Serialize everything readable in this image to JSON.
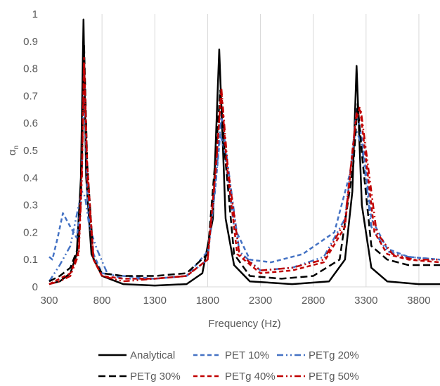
{
  "chart_data": {
    "type": "line",
    "title": "",
    "xlabel": "Frequency (Hz)",
    "ylabel": "α",
    "ylabel_sub": "n",
    "xlim": [
      300,
      4000
    ],
    "ylim": [
      0,
      1
    ],
    "xticks": [
      300,
      800,
      1300,
      1800,
      2300,
      2800,
      3300,
      3800
    ],
    "yticks": [
      0,
      0.1,
      0.2,
      0.3,
      0.4,
      0.5,
      0.6,
      0.7,
      0.8,
      0.9,
      1
    ],
    "ytick_labels": [
      "0",
      "0.1",
      "0.2",
      "0.3",
      "0.4",
      "0.5",
      "0.6",
      "0.7",
      "0.8",
      "0.9",
      "1"
    ],
    "grid": "vertical",
    "legend_position": "bottom",
    "series": [
      {
        "name": "Analytical",
        "color": "#000000",
        "dash": "solid",
        "points": [
          [
            300,
            0.01
          ],
          [
            400,
            0.02
          ],
          [
            500,
            0.05
          ],
          [
            560,
            0.12
          ],
          [
            600,
            0.4
          ],
          [
            625,
            0.98
          ],
          [
            650,
            0.4
          ],
          [
            700,
            0.12
          ],
          [
            800,
            0.04
          ],
          [
            1000,
            0.01
          ],
          [
            1300,
            0.005
          ],
          [
            1600,
            0.01
          ],
          [
            1750,
            0.05
          ],
          [
            1850,
            0.25
          ],
          [
            1910,
            0.87
          ],
          [
            1970,
            0.25
          ],
          [
            2050,
            0.08
          ],
          [
            2200,
            0.02
          ],
          [
            2600,
            0.01
          ],
          [
            2950,
            0.02
          ],
          [
            3100,
            0.1
          ],
          [
            3170,
            0.35
          ],
          [
            3210,
            0.81
          ],
          [
            3260,
            0.3
          ],
          [
            3350,
            0.07
          ],
          [
            3500,
            0.02
          ],
          [
            3800,
            0.01
          ],
          [
            4000,
            0.01
          ]
        ]
      },
      {
        "name": "PET 10%",
        "color": "#4472C4",
        "dash": "dashed",
        "points": [
          [
            300,
            0.11
          ],
          [
            330,
            0.1
          ],
          [
            380,
            0.18
          ],
          [
            430,
            0.27
          ],
          [
            500,
            0.22
          ],
          [
            560,
            0.18
          ],
          [
            600,
            0.3
          ],
          [
            630,
            0.79
          ],
          [
            660,
            0.35
          ],
          [
            720,
            0.12
          ],
          [
            800,
            0.05
          ],
          [
            1000,
            0.04
          ],
          [
            1300,
            0.03
          ],
          [
            1600,
            0.04
          ],
          [
            1800,
            0.13
          ],
          [
            1870,
            0.35
          ],
          [
            1920,
            0.56
          ],
          [
            1960,
            0.5
          ],
          [
            2050,
            0.22
          ],
          [
            2200,
            0.1
          ],
          [
            2400,
            0.09
          ],
          [
            2700,
            0.12
          ],
          [
            3000,
            0.2
          ],
          [
            3150,
            0.42
          ],
          [
            3210,
            0.65
          ],
          [
            3270,
            0.52
          ],
          [
            3350,
            0.25
          ],
          [
            3500,
            0.14
          ],
          [
            3700,
            0.11
          ],
          [
            4000,
            0.1
          ]
        ]
      },
      {
        "name": "PETg 20%",
        "color": "#4472C4",
        "dash": "dashdotdot",
        "points": [
          [
            300,
            0.02
          ],
          [
            400,
            0.08
          ],
          [
            500,
            0.15
          ],
          [
            580,
            0.3
          ],
          [
            610,
            0.35
          ],
          [
            640,
            0.33
          ],
          [
            680,
            0.22
          ],
          [
            750,
            0.14
          ],
          [
            850,
            0.05
          ],
          [
            1000,
            0.03
          ],
          [
            1300,
            0.03
          ],
          [
            1600,
            0.04
          ],
          [
            1800,
            0.1
          ],
          [
            1880,
            0.4
          ],
          [
            1930,
            0.63
          ],
          [
            2000,
            0.42
          ],
          [
            2100,
            0.13
          ],
          [
            2300,
            0.06
          ],
          [
            2600,
            0.07
          ],
          [
            2900,
            0.11
          ],
          [
            3100,
            0.25
          ],
          [
            3200,
            0.58
          ],
          [
            3260,
            0.52
          ],
          [
            3350,
            0.22
          ],
          [
            3500,
            0.13
          ],
          [
            3700,
            0.11
          ],
          [
            4000,
            0.1
          ]
        ]
      },
      {
        "name": "PETg 30%",
        "color": "#000000",
        "dash": "longdash",
        "points": [
          [
            300,
            0.02
          ],
          [
            400,
            0.04
          ],
          [
            500,
            0.07
          ],
          [
            580,
            0.15
          ],
          [
            610,
            0.45
          ],
          [
            630,
            0.89
          ],
          [
            660,
            0.45
          ],
          [
            720,
            0.1
          ],
          [
            800,
            0.05
          ],
          [
            1000,
            0.04
          ],
          [
            1300,
            0.04
          ],
          [
            1600,
            0.05
          ],
          [
            1800,
            0.12
          ],
          [
            1880,
            0.5
          ],
          [
            1920,
            0.72
          ],
          [
            1960,
            0.5
          ],
          [
            2050,
            0.12
          ],
          [
            2200,
            0.04
          ],
          [
            2500,
            0.03
          ],
          [
            2800,
            0.04
          ],
          [
            3050,
            0.1
          ],
          [
            3180,
            0.45
          ],
          [
            3220,
            0.67
          ],
          [
            3270,
            0.45
          ],
          [
            3350,
            0.15
          ],
          [
            3500,
            0.1
          ],
          [
            3700,
            0.08
          ],
          [
            4000,
            0.08
          ]
        ]
      },
      {
        "name": "PETg 40%",
        "color": "#C00000",
        "dash": "dashed",
        "points": [
          [
            300,
            0.01
          ],
          [
            400,
            0.03
          ],
          [
            500,
            0.05
          ],
          [
            580,
            0.13
          ],
          [
            610,
            0.45
          ],
          [
            630,
            0.84
          ],
          [
            660,
            0.45
          ],
          [
            720,
            0.1
          ],
          [
            800,
            0.04
          ],
          [
            1000,
            0.03
          ],
          [
            1300,
            0.03
          ],
          [
            1600,
            0.04
          ],
          [
            1800,
            0.1
          ],
          [
            1880,
            0.45
          ],
          [
            1930,
            0.72
          ],
          [
            1980,
            0.45
          ],
          [
            2080,
            0.12
          ],
          [
            2300,
            0.05
          ],
          [
            2600,
            0.06
          ],
          [
            2900,
            0.09
          ],
          [
            3100,
            0.22
          ],
          [
            3200,
            0.6
          ],
          [
            3240,
            0.66
          ],
          [
            3290,
            0.5
          ],
          [
            3380,
            0.2
          ],
          [
            3500,
            0.12
          ],
          [
            3700,
            0.1
          ],
          [
            4000,
            0.09
          ]
        ]
      },
      {
        "name": "PETg 50%",
        "color": "#C00000",
        "dash": "dashdotdot",
        "points": [
          [
            300,
            0.01
          ],
          [
            400,
            0.02
          ],
          [
            500,
            0.04
          ],
          [
            580,
            0.12
          ],
          [
            610,
            0.4
          ],
          [
            630,
            0.82
          ],
          [
            660,
            0.4
          ],
          [
            720,
            0.1
          ],
          [
            800,
            0.04
          ],
          [
            1000,
            0.02
          ],
          [
            1300,
            0.03
          ],
          [
            1600,
            0.04
          ],
          [
            1800,
            0.1
          ],
          [
            1880,
            0.44
          ],
          [
            1930,
            0.73
          ],
          [
            1990,
            0.44
          ],
          [
            2100,
            0.12
          ],
          [
            2300,
            0.06
          ],
          [
            2600,
            0.07
          ],
          [
            2900,
            0.1
          ],
          [
            3100,
            0.24
          ],
          [
            3210,
            0.64
          ],
          [
            3250,
            0.65
          ],
          [
            3300,
            0.5
          ],
          [
            3400,
            0.2
          ],
          [
            3550,
            0.12
          ],
          [
            3750,
            0.1
          ],
          [
            4000,
            0.1
          ]
        ]
      }
    ]
  }
}
